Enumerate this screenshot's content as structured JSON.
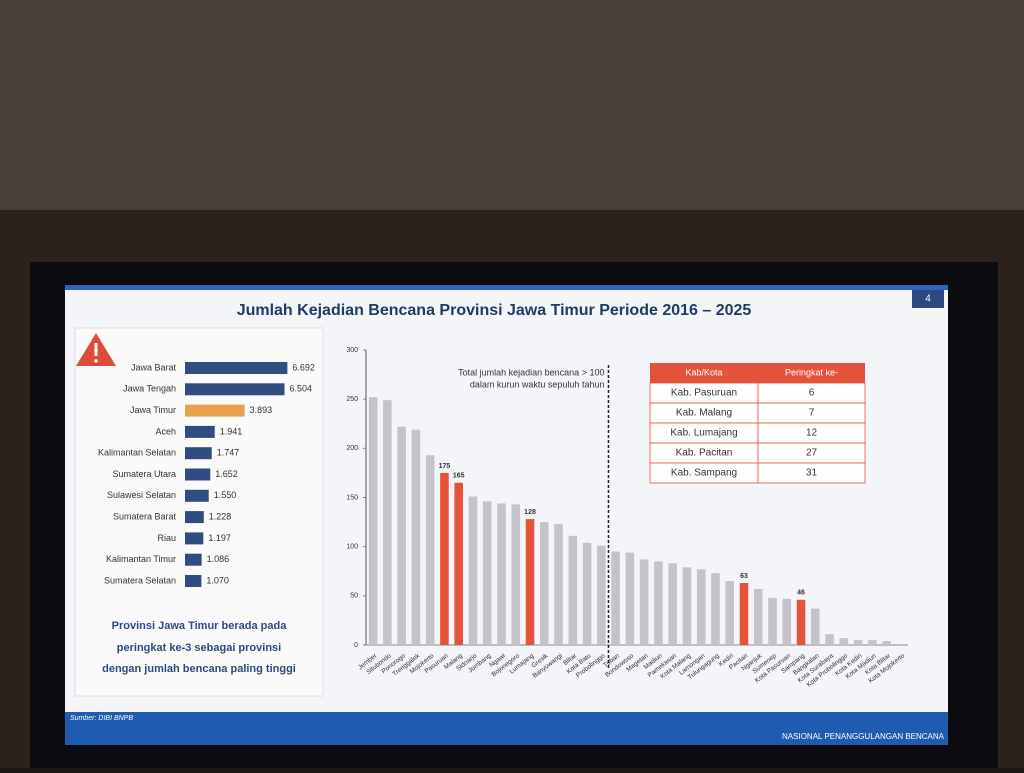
{
  "title": "Jumlah Kejadian Bencana Provinsi Jawa Timur Periode 2016 – 2025",
  "page_number": "4",
  "chart_data": [
    {
      "type": "hbar",
      "categories": [
        "Jawa Barat",
        "Jawa Tengah",
        "Jawa Timur",
        "Aceh",
        "Kalimantan Selatan",
        "Sumatera Utara",
        "Sulawesi Selatan",
        "Sumatera Barat",
        "Riau",
        "Kalimantan Timur",
        "Sumatera Selatan"
      ],
      "values": [
        6692,
        6504,
        3893,
        1941,
        1747,
        1652,
        1550,
        1228,
        1197,
        1086,
        1070
      ],
      "value_labels": [
        "6.692",
        "6.504",
        "3.893",
        "1.941",
        "1.747",
        "1.652",
        "1.550",
        "1.228",
        "1.197",
        "1.086",
        "1.070"
      ],
      "colors": [
        "#2f4d80",
        "#2f4d80",
        "#e8a14b",
        "#2f4d80",
        "#2f4d80",
        "#2f4d80",
        "#2f4d80",
        "#2f4d80",
        "#2f4d80",
        "#2f4d80",
        "#2f4d80"
      ]
    },
    {
      "type": "bar",
      "categories": [
        "Jember",
        "Situbondo",
        "Ponorogo",
        "Trenggalek",
        "Mojokerto",
        "Pasuruan",
        "Malang",
        "Sidoarjo",
        "Jombang",
        "Ngawi",
        "Bojonegoro",
        "Lumajang",
        "Gresik",
        "Banyuwangi",
        "Blitar",
        "Kota Batu",
        "Probolinggo",
        "Tuban",
        "Bondowoso",
        "Magetan",
        "Madiun",
        "Pamekasan",
        "Kota Malang",
        "Lamongan",
        "Tulungagung",
        "Kediri",
        "Pacitan",
        "Nganjuk",
        "Sumenep",
        "Kota Pasuruan",
        "Sampang",
        "Bangkalan",
        "Kota Surabaya",
        "Kota Probolinggo",
        "Kota Kediri",
        "Kota Madiun",
        "Kota Blitar",
        "Kota Mojokerto"
      ],
      "series": [
        {
          "color": "#c4c4c8",
          "values": [
            252,
            249,
            222,
            219,
            193,
            null,
            null,
            151,
            146,
            144,
            143,
            null,
            125,
            123,
            111,
            104,
            101,
            95,
            94,
            87,
            85,
            83,
            79,
            77,
            73,
            65,
            null,
            57,
            48,
            47,
            null,
            37,
            11,
            7,
            5,
            5,
            4,
            1
          ]
        },
        {
          "color": "#e5533b",
          "data_labels": true,
          "values": [
            null,
            null,
            null,
            null,
            null,
            175,
            165,
            null,
            null,
            null,
            null,
            128,
            null,
            null,
            null,
            null,
            null,
            null,
            null,
            null,
            null,
            null,
            null,
            null,
            null,
            null,
            63,
            null,
            null,
            null,
            46,
            null,
            null,
            null,
            null,
            null,
            null,
            null
          ]
        }
      ],
      "ylim": [
        0,
        300
      ],
      "yticks": [
        0,
        50,
        100,
        150,
        200,
        250,
        300
      ],
      "threshold": 100,
      "annotation": [
        "Total jumlah kejadian bencana > 100",
        "dalam kurun waktu sepuluh tahun"
      ]
    }
  ],
  "table": {
    "header": [
      "Kab/Kota",
      "Peringkat ke-"
    ],
    "rows": [
      [
        "Kab. Pasuruan",
        6
      ],
      [
        "Kab. Malang",
        7
      ],
      [
        "Kab. Lumajang",
        12
      ],
      [
        "Kab. Pacitan",
        27
      ],
      [
        "Kab. Sampang",
        31
      ]
    ]
  },
  "note": [
    "Provinsi Jawa Timur berada pada",
    "peringkat ke-3 sebagai provinsi",
    "dengan jumlah bencana paling tinggi"
  ],
  "source": "Sumber: DIBI BNPB",
  "footer": "NASIONAL PENANGGULANGAN BENCANA"
}
